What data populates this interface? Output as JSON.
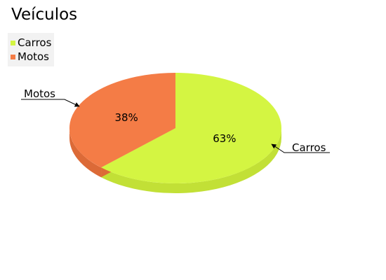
{
  "chart_data": {
    "type": "pie",
    "title": "Veículos",
    "legend_position": "top-left",
    "slices": [
      {
        "name": "Carros",
        "label": "63%",
        "color": "#d4f542",
        "side_color": "#c2e036"
      },
      {
        "name": "Motos",
        "label": "38%",
        "color": "#f47c46",
        "side_color": "#dc6a37"
      }
    ],
    "values": [
      63,
      38
    ],
    "style": "3d-tilted",
    "callouts": [
      "Carros",
      "Motos"
    ]
  }
}
